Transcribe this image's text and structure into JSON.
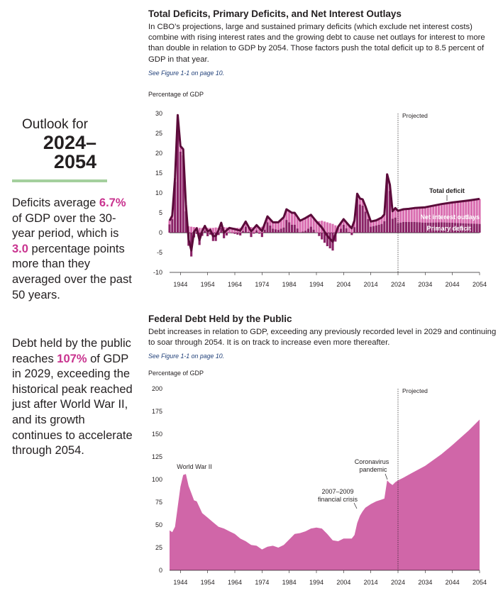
{
  "sidebar": {
    "outlook_label": "Outlook for",
    "years_line1": "2024–",
    "years_line2": "2054",
    "para1": {
      "pre": "Deficits average",
      "highlight1": "6.7%",
      "mid": "of GDP over the 30-year period, which is",
      "highlight2": "3.0",
      "post": "percentage points more than they averaged over the past 50 years."
    },
    "para2": {
      "pre": "Debt held by the public reaches",
      "highlight": "107%",
      "post": "of GDP in 2029, exceeding the historical peak reached just after World War II, and its growth continues to accelerate through 2054."
    }
  },
  "colors": {
    "total_deficit": "#5b0b3a",
    "net_interest": "#d96db0",
    "primary_deficit": "#8a2266",
    "debt_area": "#d066a8",
    "highlight": "#c9338f",
    "rule": "#a4cf9d"
  },
  "chart1": {
    "title": "Total Deficits, Primary Deficits, and Net Interest Outlays",
    "description": "In CBO’s projections, large and sustained primary deficits (which exclude net interest costs) combine with rising interest rates and the growing debt to cause net outlays for interest to more than double in relation to GDP by 2054. Those factors push the total deficit up to 8.5 percent of GDP in that year.",
    "link": "See Figure 1-1 on page 10.",
    "ylabel": "Percentage of GDP"
  },
  "chart2": {
    "title": "Federal Debt Held by the Public",
    "description": "Debt increases in relation to GDP, exceeding any previously recorded level in 2029 and continuing to soar through 2054. It is on track to increase even more thereafter.",
    "link": "See Figure 1-1 on page 10.",
    "ylabel": "Percentage of GDP"
  },
  "chart_data": [
    {
      "type": "area",
      "xlabel": "",
      "ylabel": "Percentage of GDP",
      "xlim": [
        1940,
        2054
      ],
      "ylim": [
        -10,
        30
      ],
      "x_ticks": [
        1944,
        1954,
        1964,
        1974,
        1984,
        1994,
        2004,
        2014,
        2024,
        2034,
        2044,
        2054
      ],
      "y_ticks": [
        -10,
        -5,
        0,
        5,
        10,
        15,
        20,
        25,
        30
      ],
      "projected_start": 2024,
      "projected_label": "Projected",
      "annotations": [
        "Total deficit"
      ],
      "series_labels": {
        "net_interest": "Net interest outlays",
        "primary": "Primary deficit"
      },
      "x": [
        1940,
        1941,
        1942,
        1943,
        1944,
        1945,
        1946,
        1947,
        1948,
        1949,
        1950,
        1951,
        1952,
        1953,
        1954,
        1955,
        1956,
        1957,
        1958,
        1959,
        1960,
        1962,
        1964,
        1966,
        1968,
        1970,
        1972,
        1974,
        1976,
        1978,
        1980,
        1982,
        1983,
        1985,
        1986,
        1988,
        1990,
        1992,
        1994,
        1996,
        1998,
        2000,
        2002,
        2004,
        2006,
        2007,
        2008,
        2009,
        2010,
        2011,
        2012,
        2014,
        2016,
        2018,
        2019,
        2020,
        2021,
        2022,
        2023,
        2024,
        2026,
        2028,
        2030,
        2034,
        2040,
        2044,
        2050,
        2054
      ],
      "series": [
        {
          "key": "total",
          "values": [
            3,
            4.3,
            13.8,
            29.6,
            21.8,
            21,
            7.1,
            -1.7,
            -4.5,
            0.2,
            1.1,
            -1.9,
            0.4,
            1.7,
            0.3,
            0.7,
            -0.9,
            -0.8,
            0.6,
            2.5,
            0,
            1.2,
            0.9,
            0.5,
            2.8,
            0.3,
            1.9,
            0.4,
            4.1,
            2.6,
            2.6,
            3.9,
            5.9,
            5,
            5,
            3,
            3.7,
            4.5,
            2.8,
            1.3,
            -0.8,
            -2.3,
            1.5,
            3.4,
            1.8,
            1.1,
            3.1,
            9.8,
            8.6,
            8.4,
            6.7,
            2.8,
            3.1,
            3.8,
            4.6,
            14.7,
            12.1,
            5.4,
            6.2,
            5.5,
            5.9,
            6,
            6.2,
            6.4,
            7.2,
            7.6,
            8.1,
            8.5
          ]
        },
        {
          "key": "net_interest",
          "values": [
            0.9,
            0.9,
            1,
            1.2,
            1.4,
            1.5,
            1.7,
            1.6,
            1.5,
            1.4,
            1.4,
            1.2,
            1.2,
            1.2,
            1.2,
            1.2,
            1.2,
            1.3,
            1.2,
            1.3,
            1.4,
            1.2,
            1.2,
            1.2,
            1.3,
            1.4,
            1.3,
            1.5,
            1.5,
            1.6,
            1.9,
            2.6,
            2.7,
            3,
            3,
            2.9,
            3.2,
            3,
            2.8,
            3,
            2.6,
            2.2,
            1.5,
            1.4,
            1.6,
            1.7,
            1.7,
            1.3,
            1.5,
            1.6,
            1.4,
            1.3,
            1.3,
            1.6,
            1.7,
            1.6,
            1.6,
            1.9,
            2.4,
            3.1,
            3.2,
            3.3,
            3.5,
            3.9,
            4.6,
            5.1,
            5.8,
            6.3
          ]
        }
      ]
    },
    {
      "type": "area",
      "xlabel": "",
      "ylabel": "Percentage of GDP",
      "xlim": [
        1940,
        2054
      ],
      "ylim": [
        0,
        200
      ],
      "x_ticks": [
        1944,
        1954,
        1964,
        1974,
        1984,
        1994,
        2004,
        2014,
        2024,
        2034,
        2044,
        2054
      ],
      "y_ticks": [
        0,
        25,
        50,
        75,
        100,
        125,
        150,
        175,
        200
      ],
      "projected_start": 2024,
      "projected_label": "Projected",
      "annotations": [
        {
          "text_line1": "World War II",
          "text_line2": ""
        },
        {
          "text_line1": "2007–2009",
          "text_line2": "financial crisis"
        },
        {
          "text_line1": "Coronavirus",
          "text_line2": "pandemic"
        }
      ],
      "x": [
        1940,
        1941,
        1942,
        1943,
        1944,
        1945,
        1946,
        1947,
        1948,
        1949,
        1950,
        1952,
        1954,
        1956,
        1958,
        1960,
        1962,
        1964,
        1966,
        1968,
        1970,
        1972,
        1974,
        1976,
        1978,
        1980,
        1982,
        1984,
        1986,
        1988,
        1990,
        1992,
        1994,
        1996,
        1998,
        2000,
        2002,
        2004,
        2006,
        2007,
        2008,
        2009,
        2010,
        2011,
        2012,
        2014,
        2016,
        2018,
        2019,
        2020,
        2021,
        2022,
        2023,
        2024,
        2026,
        2029,
        2034,
        2040,
        2044,
        2050,
        2054
      ],
      "series": [
        {
          "key": "debt",
          "values": [
            44,
            42,
            48,
            70,
            92,
            105,
            106,
            93,
            85,
            77,
            76,
            63,
            58,
            53,
            48,
            46,
            43,
            40,
            35,
            32,
            28,
            27,
            23,
            26,
            27,
            25,
            28,
            34,
            40,
            41,
            43,
            46,
            47,
            46,
            40,
            33,
            32,
            35,
            35,
            35,
            39,
            52,
            60,
            65,
            69,
            73,
            76,
            78,
            79,
            99,
            96,
            94,
            97,
            99,
            102,
            107,
            115,
            128,
            138,
            154,
            166
          ]
        }
      ]
    }
  ]
}
